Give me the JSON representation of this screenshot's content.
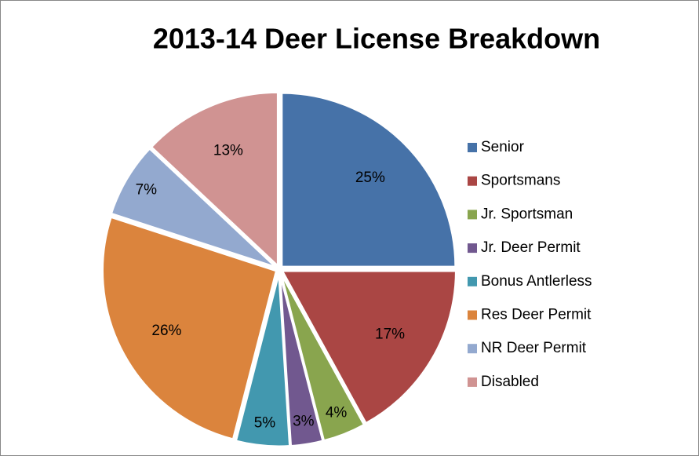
{
  "chart_data": {
    "type": "pie",
    "title": "2013-14 Deer License Breakdown",
    "categories": [
      "Senior",
      "Sportsmans",
      "Jr. Sportsman",
      "Jr. Deer Permit",
      "Bonus Antlerless",
      "Res Deer Permit",
      "NR Deer Permit",
      "Disabled"
    ],
    "values": [
      25,
      17,
      4,
      3,
      5,
      26,
      7,
      13
    ],
    "value_labels": [
      "25%",
      "17%",
      "4%",
      "3%",
      "5%",
      "26%",
      "7%",
      "13%"
    ],
    "colors": [
      "#4672a8",
      "#aa4644",
      "#89a54e",
      "#71588f",
      "#4298af",
      "#db843d",
      "#93a9cf",
      "#d09392"
    ],
    "legend": "right"
  }
}
